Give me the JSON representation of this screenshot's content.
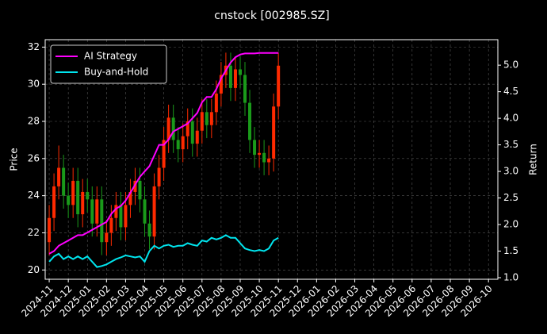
{
  "chart_data": {
    "type": "candlestick",
    "title": "cnstock [002985.SZ]",
    "ylabel": "Price",
    "y2label": "Return",
    "x": [
      "2024-11",
      "2024-11",
      "2024-11",
      "2024-11",
      "2024-12",
      "2024-12",
      "2024-12",
      "2024-12",
      "2025-01",
      "2025-01",
      "2025-01",
      "2025-01",
      "2025-02",
      "2025-02",
      "2025-02",
      "2025-02",
      "2025-03",
      "2025-03",
      "2025-03",
      "2025-03",
      "2025-04",
      "2025-04",
      "2025-04",
      "2025-04",
      "2025-05",
      "2025-05",
      "2025-05",
      "2025-05",
      "2025-06",
      "2025-06",
      "2025-06",
      "2025-06",
      "2025-07",
      "2025-07",
      "2025-07",
      "2025-07",
      "2025-08",
      "2025-08",
      "2025-08",
      "2025-08",
      "2025-09",
      "2025-09",
      "2025-09",
      "2025-09",
      "2025-10",
      "2025-10",
      "2025-10",
      "2025-10",
      "2025-11"
    ],
    "open": [
      21.5,
      22.8,
      24.5,
      25.5,
      24.0,
      23.5,
      24.8,
      23.0,
      24.2,
      23.8,
      22.5,
      23.8,
      21.5,
      22.0,
      22.8,
      23.5,
      22.3,
      23.5,
      24.2,
      24.8,
      23.8,
      22.5,
      21.8,
      24.5,
      25.5,
      27.0,
      28.2,
      27.0,
      26.5,
      27.2,
      28.0,
      26.8,
      27.5,
      28.5,
      27.8,
      28.5,
      29.5,
      30.5,
      31.0,
      29.8,
      30.8,
      30.5,
      29.0,
      27.0,
      26.2,
      26.3,
      25.8,
      26.0,
      28.8
    ],
    "high": [
      23.5,
      25.2,
      26.7,
      26.2,
      24.7,
      25.5,
      25.5,
      24.9,
      24.9,
      24.5,
      24.5,
      24.5,
      22.7,
      23.5,
      24.2,
      24.2,
      24.2,
      24.9,
      25.5,
      25.5,
      24.5,
      23.2,
      25.2,
      26.2,
      27.7,
      28.9,
      28.9,
      27.7,
      27.9,
      28.7,
      28.7,
      28.2,
      29.2,
      29.2,
      29.2,
      30.2,
      31.2,
      31.7,
      31.7,
      31.5,
      31.5,
      31.2,
      29.7,
      27.7,
      27.0,
      27.0,
      26.7,
      29.5,
      31.7
    ],
    "low": [
      20.8,
      22.1,
      23.8,
      23.3,
      22.8,
      22.8,
      22.3,
      22.3,
      23.1,
      21.8,
      21.8,
      20.8,
      20.8,
      21.3,
      22.1,
      21.6,
      21.6,
      22.8,
      23.5,
      23.1,
      21.8,
      21.1,
      21.1,
      23.8,
      24.8,
      26.3,
      26.3,
      25.8,
      25.8,
      26.5,
      26.1,
      26.1,
      26.8,
      27.1,
      27.1,
      27.8,
      28.8,
      29.8,
      29.1,
      29.1,
      29.8,
      28.3,
      26.3,
      25.5,
      25.5,
      25.1,
      25.1,
      25.3,
      28.1
    ],
    "close": [
      22.8,
      24.5,
      25.5,
      24.0,
      23.5,
      24.8,
      23.0,
      24.2,
      23.8,
      22.5,
      23.8,
      21.5,
      22.0,
      22.8,
      23.5,
      22.3,
      23.5,
      24.2,
      24.8,
      23.8,
      22.5,
      21.8,
      24.5,
      25.5,
      27.0,
      28.2,
      27.0,
      26.5,
      27.2,
      28.0,
      26.8,
      27.5,
      28.5,
      27.8,
      28.5,
      29.5,
      30.5,
      31.0,
      29.8,
      30.8,
      30.5,
      29.0,
      27.0,
      26.2,
      26.3,
      25.8,
      26.0,
      28.8,
      31.0
    ],
    "up_color": "#ff2a00",
    "down_color": "#1a9a1a",
    "series": [
      {
        "name": "AI Strategy",
        "color": "#ff00ff",
        "axis": "y2",
        "values": [
          1.45,
          1.5,
          1.6,
          1.65,
          1.7,
          1.75,
          1.8,
          1.8,
          1.85,
          1.9,
          1.95,
          2.0,
          2.05,
          2.2,
          2.3,
          2.35,
          2.45,
          2.6,
          2.75,
          2.9,
          3.0,
          3.1,
          3.3,
          3.5,
          3.5,
          3.6,
          3.75,
          3.8,
          3.85,
          3.9,
          4.0,
          4.1,
          4.3,
          4.4,
          4.4,
          4.55,
          4.75,
          4.9,
          5.05,
          5.15,
          5.2,
          5.22,
          5.22,
          5.22,
          5.23,
          5.23,
          5.23,
          5.23,
          5.23
        ]
      },
      {
        "name": "Buy-and-Hold",
        "color": "#00e5ee",
        "axis": "y2",
        "values": [
          1.3,
          1.4,
          1.45,
          1.35,
          1.4,
          1.35,
          1.4,
          1.35,
          1.4,
          1.3,
          1.2,
          1.22,
          1.25,
          1.3,
          1.35,
          1.38,
          1.42,
          1.4,
          1.38,
          1.4,
          1.3,
          1.5,
          1.6,
          1.55,
          1.6,
          1.62,
          1.58,
          1.6,
          1.6,
          1.65,
          1.62,
          1.6,
          1.7,
          1.68,
          1.75,
          1.72,
          1.75,
          1.8,
          1.75,
          1.75,
          1.65,
          1.55,
          1.52,
          1.5,
          1.52,
          1.5,
          1.55,
          1.7,
          1.75
        ]
      }
    ],
    "ylim": [
      19.5,
      32.4
    ],
    "yticks": [
      20,
      22,
      24,
      26,
      28,
      30,
      32
    ],
    "y2lim": [
      0.97,
      5.48
    ],
    "y2ticks": [
      {
        "value": 1.0,
        "label": "1.0"
      },
      1.5,
      {
        "value": 2.0,
        "label": "2.0"
      },
      2.5,
      {
        "value": 3.0,
        "label": "3.0"
      },
      3.5,
      {
        "value": 4.0,
        "label": "4.0"
      },
      4.5,
      {
        "value": 5.0,
        "label": "5.0"
      }
    ],
    "xticks": [
      "2024-11",
      "2024-12",
      "2025-01",
      "2025-02",
      "2025-03",
      "2025-04",
      "2025-05",
      "2025-06",
      "2025-07",
      "2025-08",
      "2025-09",
      "2025-10",
      "2025-11",
      "2025-12",
      "2026-01",
      "2026-02",
      "2026-03",
      "2026-04",
      "2026-05",
      "2026-06",
      "2026-07",
      "2026-08",
      "2026-09",
      "2026-10"
    ],
    "grid": true,
    "legend": "upper left"
  }
}
